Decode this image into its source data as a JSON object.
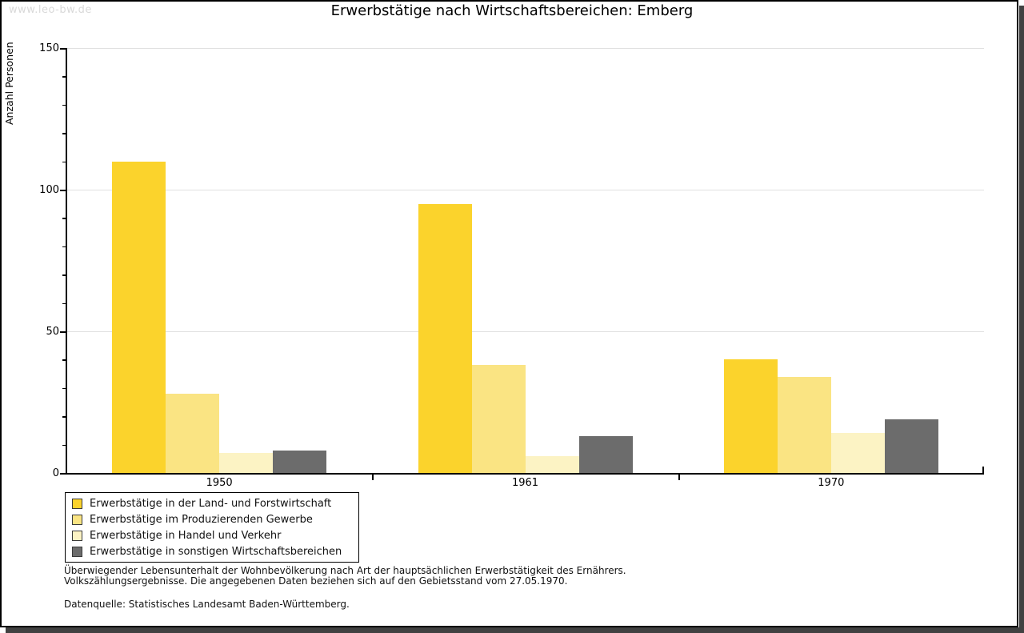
{
  "watermark": "www.leo-bw.de",
  "chart_data": {
    "type": "bar",
    "title": "Erwerbstätige nach Wirtschaftsbereichen: Emberg",
    "xlabel": "",
    "ylabel": "Anzahl Personen",
    "categories": [
      "1950",
      "1961",
      "1970"
    ],
    "series": [
      {
        "name": "Erwerbstätige in der Land- und Forstwirtschaft",
        "color": "#FBD32C",
        "values": [
          110,
          95,
          40
        ]
      },
      {
        "name": "Erwerbstätige im Produzierenden Gewerbe",
        "color": "#FAE483",
        "values": [
          28,
          38,
          34
        ]
      },
      {
        "name": "Erwerbstätige in Handel und Verkehr",
        "color": "#FCF3C4",
        "values": [
          7,
          6,
          14
        ]
      },
      {
        "name": "Erwerbstätige in sonstigen Wirtschaftsbereichen",
        "color": "#6C6C6C",
        "values": [
          8,
          13,
          19
        ]
      }
    ],
    "ylim": [
      0,
      150
    ],
    "yticks": [
      0,
      50,
      100,
      150
    ],
    "minor_tick_step": 10,
    "grid": "horizontal-major",
    "legend_position": "bottom-left"
  },
  "footnotes": {
    "line1": "Überwiegender Lebensunterhalt der Wohnbevölkerung nach Art der hauptsächlichen Erwerbstätigkeit des Ernährers.",
    "line2": "Volkszählungsergebnisse. Die angegebenen Daten beziehen sich auf den Gebietsstand vom 27.05.1970.",
    "source": "Datenquelle: Statistisches Landesamt Baden-Württemberg."
  }
}
